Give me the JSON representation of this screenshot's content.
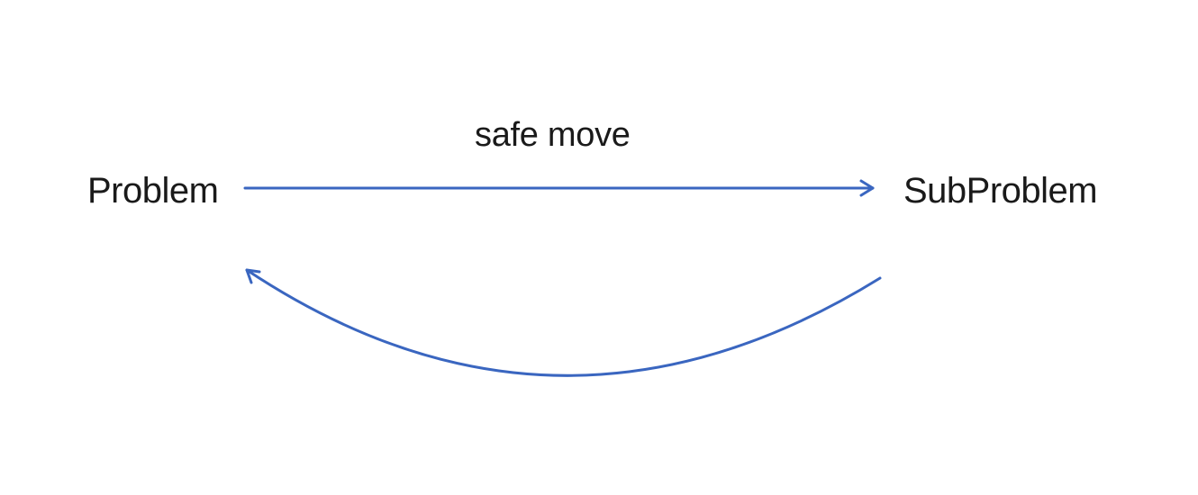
{
  "diagram": {
    "nodes": [
      {
        "id": "problem",
        "label": "Problem"
      },
      {
        "id": "subproblem",
        "label": "SubProblem"
      }
    ],
    "edges": [
      {
        "from": "problem",
        "to": "subproblem",
        "label": "safe move"
      },
      {
        "from": "subproblem",
        "to": "problem",
        "label": ""
      }
    ],
    "colors": {
      "arrow": "#3a66c0",
      "text": "#1a1a1a",
      "background": "#ffffff"
    }
  }
}
